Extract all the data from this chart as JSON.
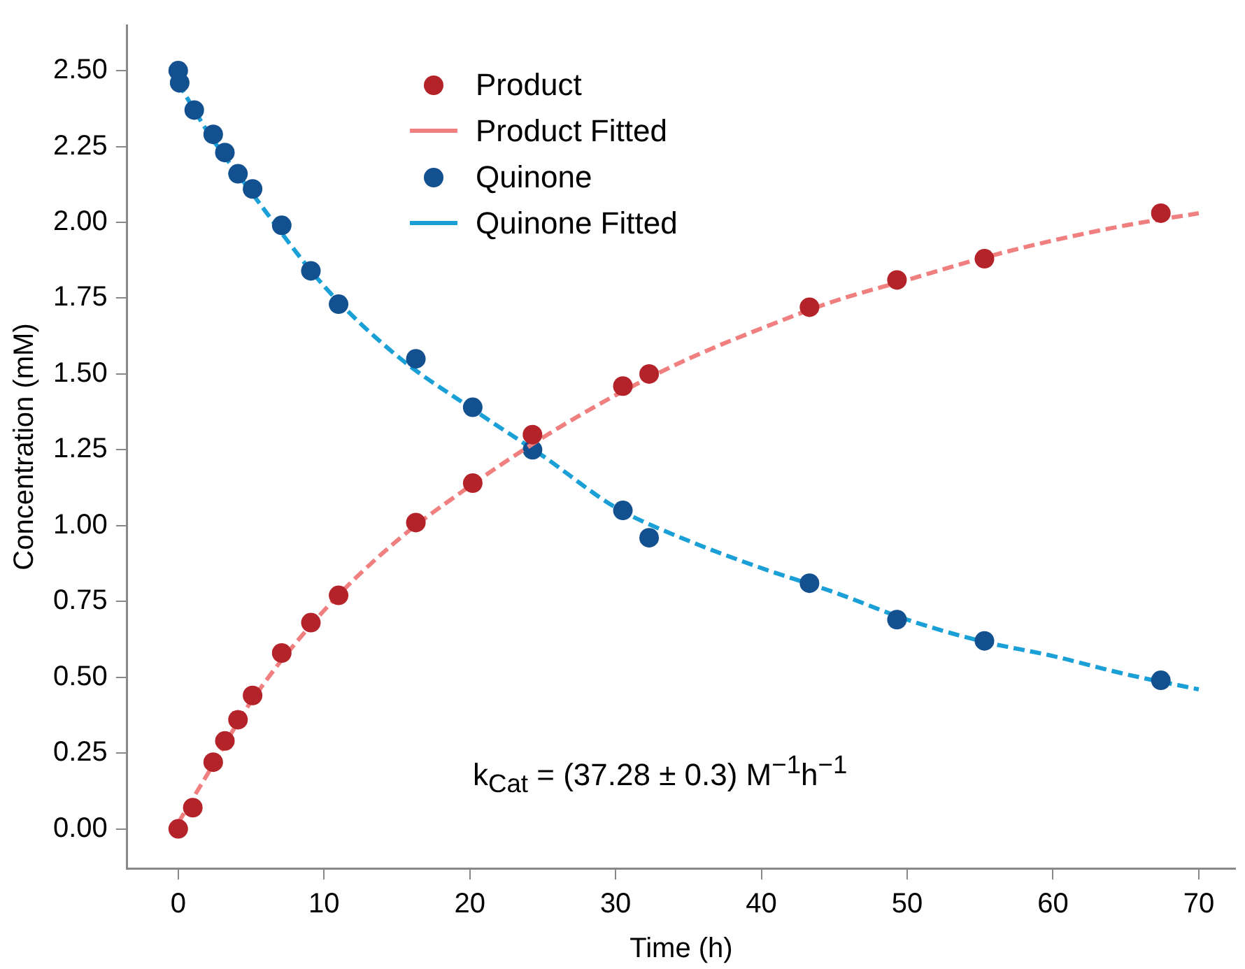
{
  "chart_data": {
    "type": "scatter",
    "xlabel": "Time (h)",
    "ylabel": "Concentration (mM)",
    "xlim": [
      -3.5,
      72.5
    ],
    "ylim": [
      -0.13,
      2.65
    ],
    "xticks": [
      0,
      10,
      20,
      30,
      40,
      50,
      60,
      70
    ],
    "yticks": [
      {
        "value": 0,
        "label": "0.00"
      },
      {
        "value": 0.25,
        "label": "0.25"
      },
      {
        "value": 0.5,
        "label": "0.50"
      },
      {
        "value": 0.75,
        "label": "0.75"
      },
      {
        "value": 1,
        "label": "1.00"
      },
      {
        "value": 1.25,
        "label": "1.25"
      },
      {
        "value": 1.5,
        "label": "1.50"
      },
      {
        "value": 1.75,
        "label": "1.75"
      },
      {
        "value": 2,
        "label": "2.00"
      },
      {
        "value": 2.25,
        "label": "2.25"
      },
      {
        "value": 2.5,
        "label": "2.50"
      }
    ],
    "grid": false,
    "legend": "top",
    "annotations": [
      "k$_{Cat}$ = (37.28 ± 0.3) M$^{−1}$h$^{−1}$"
    ],
    "series": [
      {
        "name": "Product",
        "type": "scatter",
        "marker": "circle",
        "color": "#b5232a",
        "x": [
          0,
          1.0,
          2.4,
          3.2,
          4.1,
          5.1,
          7.1,
          9.1,
          11.0,
          16.3,
          20.2,
          24.3,
          30.5,
          32.3,
          43.3,
          49.3,
          55.3,
          67.4
        ],
        "values": [
          0,
          0.07,
          0.22,
          0.29,
          0.36,
          0.44,
          0.58,
          0.68,
          0.77,
          1.01,
          1.14,
          1.3,
          1.46,
          1.5,
          1.72,
          1.81,
          1.88,
          2.03
        ]
      },
      {
        "name": "Product Fitted",
        "type": "line",
        "marker": "none",
        "line_style": "dashed",
        "color": "#f08080",
        "x": [
          0,
          2,
          5,
          10,
          15,
          20,
          25,
          30,
          35,
          40,
          45,
          50,
          55,
          60,
          65,
          70
        ],
        "values": [
          0.02,
          0.18,
          0.42,
          0.72,
          0.95,
          1.13,
          1.29,
          1.43,
          1.55,
          1.65,
          1.74,
          1.81,
          1.88,
          1.94,
          1.99,
          2.03
        ]
      },
      {
        "name": "Quinone",
        "type": "scatter",
        "marker": "circle",
        "color": "#12508f",
        "x": [
          0,
          0.1,
          1.1,
          2.4,
          3.2,
          4.1,
          5.1,
          7.1,
          9.1,
          11.0,
          16.3,
          20.2,
          24.3,
          30.5,
          32.3,
          43.3,
          49.3,
          55.3,
          67.4
        ],
        "values": [
          2.5,
          2.46,
          2.37,
          2.29,
          2.23,
          2.16,
          2.11,
          1.99,
          1.84,
          1.73,
          1.55,
          1.39,
          1.25,
          1.05,
          0.96,
          0.81,
          0.69,
          0.62,
          0.49
        ]
      },
      {
        "name": "Quinone Fitted",
        "type": "line",
        "marker": "none",
        "line_style": "dashed",
        "color": "#1aa0d6",
        "x": [
          0,
          2,
          5,
          10,
          15,
          20,
          25,
          30,
          35,
          40,
          45,
          50,
          55,
          60,
          65,
          70
        ],
        "values": [
          2.46,
          2.3,
          2.1,
          1.79,
          1.56,
          1.39,
          1.23,
          1.06,
          0.95,
          0.86,
          0.78,
          0.69,
          0.62,
          0.57,
          0.51,
          0.46
        ]
      }
    ]
  }
}
